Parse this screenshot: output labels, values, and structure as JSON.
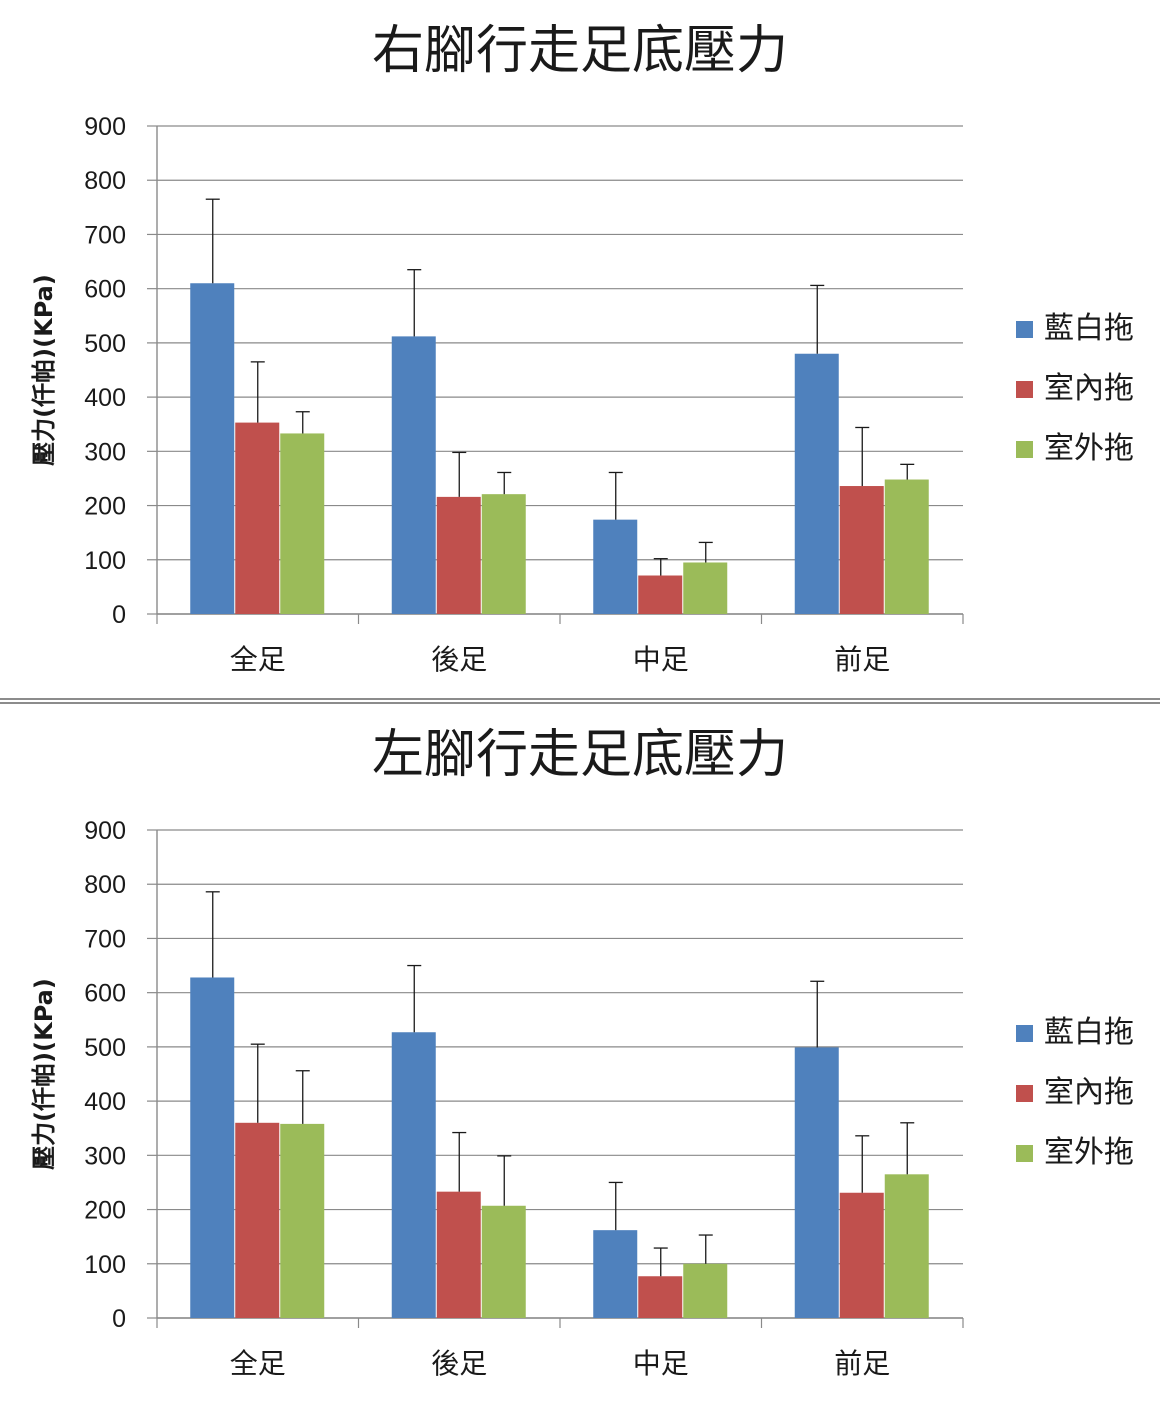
{
  "chart_data": [
    {
      "type": "bar",
      "title": "右腳行走足底壓力",
      "ylabel": "壓力(仟帕)(KPa)",
      "xlabel": "",
      "ylim": [
        0,
        900
      ],
      "yticks": [
        0,
        100,
        200,
        300,
        400,
        500,
        600,
        700,
        800,
        900
      ],
      "grid": true,
      "legend_position": "right",
      "categories": [
        "全足",
        "後足",
        "中足",
        "前足"
      ],
      "series": [
        {
          "name": "藍白拖",
          "color": "#4f81bd",
          "values": [
            610,
            512,
            174,
            480
          ],
          "error": [
            155,
            123,
            87,
            126
          ]
        },
        {
          "name": "室內拖",
          "color": "#c0504d",
          "values": [
            353,
            216,
            71,
            236
          ],
          "error": [
            112,
            82,
            31,
            108
          ]
        },
        {
          "name": "室外拖",
          "color": "#9bbb59",
          "values": [
            333,
            221,
            95,
            248
          ],
          "error": [
            40,
            40,
            37,
            28
          ]
        }
      ]
    },
    {
      "type": "bar",
      "title": "左腳行走足底壓力",
      "ylabel": "壓力(仟帕)(KPa)",
      "xlabel": "",
      "ylim": [
        0,
        900
      ],
      "yticks": [
        0,
        100,
        200,
        300,
        400,
        500,
        600,
        700,
        800,
        900
      ],
      "grid": true,
      "legend_position": "right",
      "categories": [
        "全足",
        "後足",
        "中足",
        "前足"
      ],
      "series": [
        {
          "name": "藍白拖",
          "color": "#4f81bd",
          "values": [
            628,
            527,
            162,
            499
          ],
          "error": [
            158,
            123,
            88,
            122
          ]
        },
        {
          "name": "室內拖",
          "color": "#c0504d",
          "values": [
            360,
            233,
            77,
            231
          ],
          "error": [
            145,
            109,
            52,
            105
          ]
        },
        {
          "name": "室外拖",
          "color": "#9bbb59",
          "values": [
            358,
            207,
            100,
            265
          ],
          "error": [
            98,
            92,
            53,
            95
          ]
        }
      ]
    }
  ]
}
